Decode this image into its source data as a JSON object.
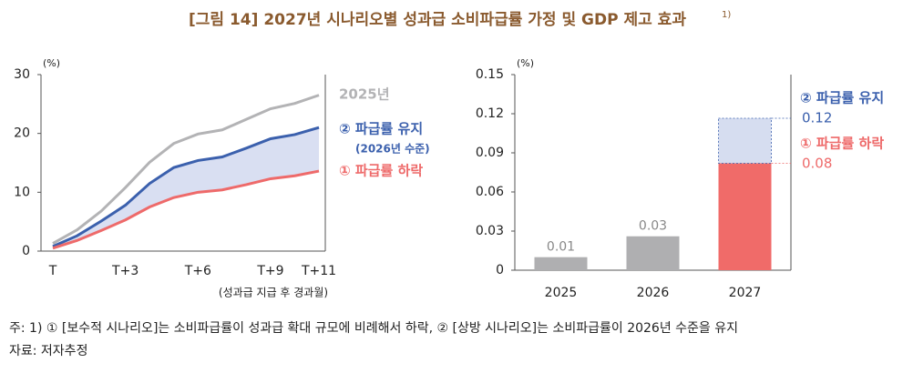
{
  "header": {
    "title": "[그림 14] 2027년 시나리오별 성과급 소비파급률 가정 및 GDP 제고 효과",
    "note_mark": "1)"
  },
  "chart_data": [
    {
      "type": "line",
      "y_unit": "(%)",
      "x_label": "(성과급 지급 후 경과월)",
      "annotation": "(2026년 수준)",
      "categories": [
        "T",
        null,
        null,
        "T+3",
        null,
        null,
        "T+6",
        null,
        null,
        "T+9",
        null,
        "T+11"
      ],
      "ylim": [
        0,
        30
      ],
      "yticks": [
        0,
        10,
        20,
        30
      ],
      "fill_between": "#d9dff2",
      "series": [
        {
          "name": "2025년",
          "color": "#b3b3b5",
          "values": [
            1.3,
            3.6,
            6.8,
            10.8,
            15.1,
            18.3,
            19.9,
            20.6,
            22.4,
            24.2,
            25.1,
            26.5
          ]
        },
        {
          "name": "② 파급률 유지",
          "color": "#3b60ad",
          "values": [
            0.8,
            2.6,
            5.1,
            7.8,
            11.5,
            14.2,
            15.4,
            16.0,
            17.5,
            19.1,
            19.8,
            21.0
          ]
        },
        {
          "name": "① 파급률 하락",
          "color": "#ee6a6a",
          "values": [
            0.5,
            1.8,
            3.5,
            5.3,
            7.5,
            9.1,
            10.0,
            10.4,
            11.3,
            12.3,
            12.8,
            13.6
          ]
        }
      ]
    },
    {
      "type": "bar",
      "y_unit": "(%)",
      "categories": [
        "2025",
        "2026",
        "2027"
      ],
      "values": [
        0.01,
        0.026,
        null
      ],
      "value_labels": [
        "0.01",
        "0.03",
        null
      ],
      "color": "#afafb1",
      "ylim": [
        0,
        0.15
      ],
      "yticks": [
        0,
        0.03,
        0.06,
        0.09,
        0.12,
        0.15
      ],
      "scenarios": [
        {
          "name": "② 파급률 유지",
          "value": 0.1165,
          "value_label": "0.12",
          "color": "#3b60ad",
          "fill": "#d6ddf0"
        },
        {
          "name": "① 파급률 하락",
          "value": 0.082,
          "value_label": "0.08",
          "color": "#ee6a6a",
          "fill": "#f06b69"
        }
      ]
    }
  ],
  "footnotes": [
    "주: 1) ① [보수적 시나리오]는 소비파급률이 성과급 확대 규모에 비례해서 하락, ② [상방 시나리오]는 소비파급률이 2026년 수준을 유지",
    "자료: 저자추정"
  ]
}
